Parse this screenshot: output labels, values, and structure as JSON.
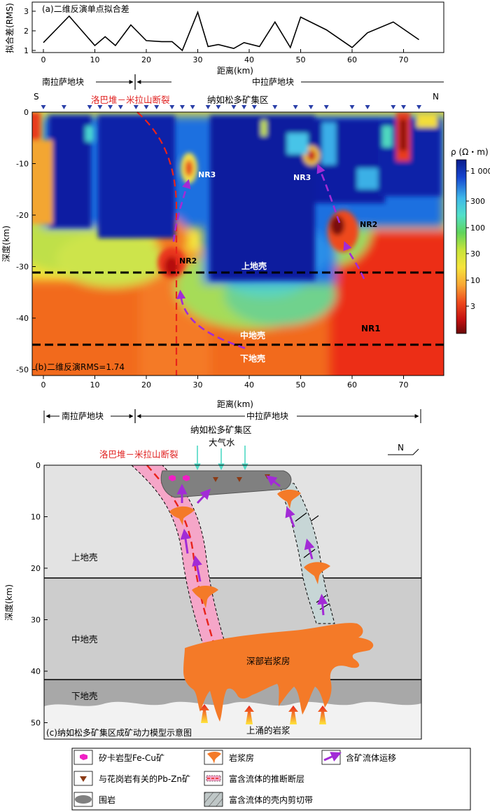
{
  "panel_a": {
    "title": "(a)二维反演单点拟合差",
    "ylabel": "拟合差(RMS)",
    "xlabel": "距离(km)",
    "yticks": [
      "1",
      "2",
      "3"
    ],
    "xticks": [
      "0",
      "10",
      "20",
      "30",
      "40",
      "50",
      "60",
      "70"
    ]
  },
  "blocks_top": {
    "south": "南拉萨地块",
    "middle": "中拉萨地块"
  },
  "panel_b": {
    "label": "(b)二维反演RMS=1.74",
    "s": "S",
    "n": "N",
    "fault": "洛巴堆－米拉山断裂",
    "district": "纳如松多矿集区",
    "ylabel": "深度(km)",
    "xlabel": "距离(km)",
    "yticks": [
      "0",
      "-10",
      "-20",
      "-30",
      "-40",
      "-50"
    ],
    "xticks": [
      "0",
      "10",
      "20",
      "30",
      "40",
      "50",
      "60",
      "70"
    ],
    "upper_crust": "上地壳",
    "middle_crust": "中地壳",
    "lower_crust": "下地壳",
    "nr3a": "NR3",
    "nr3b": "NR3",
    "nr2a": "NR2",
    "nr2b": "NR2",
    "nr1": "NR1",
    "colorbar_title": "ρ (Ω・m)",
    "colorbar_ticks": [
      "1 000",
      "300",
      "100",
      "30",
      "10",
      "3"
    ]
  },
  "blocks_bottom": {
    "south": "南拉萨地块",
    "middle": "中拉萨地块"
  },
  "panel_c": {
    "district": "纳如松多矿集区",
    "water": "大气水",
    "fault": "洛巴堆－米拉山断裂",
    "north": "N",
    "ylabel": "深度(km)",
    "yticks": [
      "0",
      "10",
      "20",
      "30",
      "40",
      "50"
    ],
    "upper_crust": "上地壳",
    "middle_crust": "中地壳",
    "lower_crust": "下地壳",
    "chamber": "深部岩浆房",
    "magma": "上涌的岩浆",
    "label": "(c)纳如松多矿集区成矿动力模型示意图"
  },
  "legend": {
    "skarn": "矽卡岩型Fe-Cu矿",
    "chamber": "岩浆房",
    "fluid": "含矿流体运移",
    "pbzn": "与花岗岩有关的Pb-Zn矿",
    "fault": "富含流体的推断断层",
    "wallrock": "围岩",
    "shear": "富含流体的壳内剪切带"
  },
  "chart_data": {
    "type": "line",
    "title": "(a)二维反演单点拟合差",
    "xlabel": "距离(km)",
    "ylabel": "拟合差(RMS)",
    "xlim": [
      -3,
      78
    ],
    "ylim": [
      1,
      3
    ],
    "x": [
      0,
      5,
      10,
      12,
      14,
      17,
      20,
      23,
      25,
      27,
      30,
      32,
      34,
      37,
      39,
      42,
      45,
      48,
      50,
      55,
      60,
      63,
      68,
      73
    ],
    "values": [
      1.4,
      2.75,
      1.25,
      1.7,
      1.25,
      2.3,
      1.5,
      1.45,
      1.45,
      1.0,
      2.95,
      1.2,
      1.3,
      1.1,
      1.4,
      1.2,
      2.45,
      1.15,
      2.7,
      2.05,
      1.15,
      1.9,
      2.45,
      1.55
    ]
  }
}
